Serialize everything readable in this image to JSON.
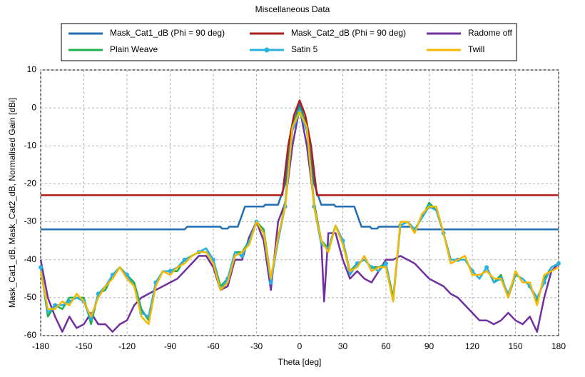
{
  "chart_data": {
    "type": "line",
    "title": "Miscellaneous Data",
    "x_label": "Theta [deg]",
    "y_label": "Mask_Cat1_dB, Mask_Cat2_dB, Normalised Gain [dBi]",
    "xlim": [
      -180,
      180
    ],
    "xticks": [
      -180,
      -150,
      -120,
      -90,
      -60,
      -30,
      0,
      30,
      60,
      90,
      120,
      150,
      180
    ],
    "ylim": [
      -60,
      10
    ],
    "yticks": [
      -60,
      -50,
      -40,
      -30,
      -20,
      -10,
      0,
      10
    ],
    "grid": true,
    "series": [
      {
        "name": "Mask_Cat1_dB (Phi = 90 deg)",
        "color": "#1f6fb2",
        "marker": false,
        "x": [
          -180,
          -80,
          -78,
          -55,
          -54,
          -50,
          -49,
          -43,
          -38,
          -25,
          -24,
          -15,
          -10,
          -5,
          0,
          5,
          10,
          15,
          24,
          25,
          38,
          43,
          49,
          50,
          54,
          55,
          78,
          80,
          180
        ],
        "values": [
          -32,
          -32,
          -31.3,
          -31.3,
          -31.8,
          -31.8,
          -31.3,
          -31.3,
          -26,
          -26,
          -25.5,
          -25.5,
          -20,
          -5,
          1,
          -5,
          -20,
          -25.5,
          -25.5,
          -26,
          -26,
          -31.3,
          -31.3,
          -31.8,
          -31.8,
          -31.3,
          -31.3,
          -32,
          -32
        ]
      },
      {
        "name": "Mask_Cat2_dB (Phi = 90 deg)",
        "color": "#b01c1c",
        "marker": false,
        "x": [
          -180,
          -12,
          -8,
          -4,
          0,
          4,
          8,
          12,
          180
        ],
        "values": [
          -23,
          -23,
          -10,
          -2,
          2,
          -2,
          -10,
          -23,
          -23
        ]
      },
      {
        "name": "Radome off",
        "color": "#7030a0",
        "marker": false,
        "x": [
          -180,
          -175,
          -170,
          -165,
          -160,
          -155,
          -150,
          -145,
          -140,
          -135,
          -130,
          -125,
          -120,
          -115,
          -110,
          -105,
          -100,
          -95,
          -90,
          -85,
          -80,
          -75,
          -70,
          -65,
          -60,
          -55,
          -50,
          -45,
          -40,
          -35,
          -30,
          -25,
          -20,
          -15,
          -10,
          -5,
          0,
          5,
          10,
          15,
          17,
          20,
          25,
          30,
          35,
          40,
          45,
          50,
          55,
          60,
          65,
          70,
          75,
          80,
          85,
          90,
          95,
          100,
          105,
          110,
          115,
          120,
          125,
          130,
          135,
          140,
          145,
          150,
          155,
          160,
          165,
          170,
          175,
          180
        ],
        "values": [
          -40,
          -50,
          -55,
          -59,
          -55,
          -58,
          -57,
          -54,
          -57,
          -57,
          -59,
          -57,
          -56,
          -52,
          -50,
          -49,
          -48,
          -47,
          -46,
          -45,
          -43,
          -41,
          -39,
          -39,
          -42,
          -48,
          -47,
          -40,
          -40,
          -34,
          -30,
          -35,
          -48,
          -30,
          -25,
          -10,
          0,
          -10,
          -25,
          -35,
          -51,
          -33,
          -33,
          -40,
          -45,
          -43,
          -45,
          -46,
          -43,
          -40,
          -40,
          -39,
          -40,
          -41,
          -43,
          -45,
          -46,
          -47,
          -49,
          -50,
          -52,
          -54,
          -56,
          -56,
          -57,
          -56,
          -54,
          -56,
          -57,
          -55,
          -59,
          -50,
          -43,
          -41
        ]
      },
      {
        "name": "Plain Weave",
        "color": "#1fae4b",
        "marker": false,
        "x": [
          -180,
          -175,
          -170,
          -165,
          -160,
          -155,
          -150,
          -145,
          -140,
          -135,
          -130,
          -125,
          -120,
          -115,
          -110,
          -105,
          -100,
          -95,
          -90,
          -85,
          -80,
          -75,
          -70,
          -65,
          -60,
          -55,
          -50,
          -45,
          -40,
          -35,
          -30,
          -25,
          -20,
          -15,
          -10,
          -5,
          0,
          5,
          10,
          15,
          20,
          25,
          30,
          35,
          40,
          45,
          50,
          55,
          60,
          65,
          70,
          75,
          80,
          85,
          90,
          95,
          100,
          105,
          110,
          115,
          120,
          125,
          130,
          135,
          140,
          145,
          150,
          155,
          160,
          165,
          170,
          175,
          180
        ],
        "values": [
          -42,
          -55,
          -52,
          -53,
          -50,
          -50,
          -50,
          -57,
          -49,
          -48,
          -44,
          -42,
          -44,
          -46,
          -53,
          -56,
          -46,
          -43,
          -43,
          -43,
          -40,
          -39,
          -38,
          -37,
          -40,
          -47,
          -45,
          -38,
          -38,
          -35,
          -30,
          -32,
          -45,
          -35,
          -25,
          -5,
          0,
          -5,
          -25,
          -35,
          -37,
          -31,
          -35,
          -43,
          -41,
          -40,
          -42,
          -42,
          -41,
          -50,
          -31,
          -30,
          -32,
          -29,
          -25,
          -27,
          -33,
          -40,
          -40,
          -40,
          -43,
          -45,
          -42,
          -46,
          -44,
          -50,
          -44,
          -45,
          -47,
          -51,
          -45,
          -42,
          -41
        ]
      },
      {
        "name": "Satin 5",
        "color": "#2bb0e0",
        "marker": true,
        "x": [
          -180,
          -175,
          -170,
          -165,
          -160,
          -155,
          -150,
          -145,
          -140,
          -135,
          -130,
          -125,
          -120,
          -115,
          -110,
          -105,
          -100,
          -95,
          -90,
          -85,
          -80,
          -75,
          -70,
          -65,
          -60,
          -55,
          -50,
          -45,
          -40,
          -35,
          -30,
          -25,
          -20,
          -15,
          -10,
          -5,
          0,
          5,
          10,
          15,
          20,
          25,
          30,
          35,
          40,
          45,
          50,
          55,
          60,
          65,
          70,
          75,
          80,
          85,
          90,
          95,
          100,
          105,
          110,
          115,
          120,
          125,
          130,
          135,
          140,
          145,
          150,
          155,
          160,
          165,
          170,
          175,
          180
        ],
        "values": [
          -42,
          -54,
          -52,
          -52,
          -51,
          -50,
          -51,
          -56,
          -49,
          -47,
          -44,
          -42,
          -44,
          -47,
          -54,
          -55,
          -46,
          -43,
          -43,
          -42,
          -40,
          -39,
          -38,
          -37,
          -40,
          -48,
          -45,
          -38,
          -39,
          -35,
          -30,
          -33,
          -46,
          -35,
          -26,
          -6,
          -1,
          -6,
          -26,
          -36,
          -37,
          -31,
          -35,
          -44,
          -41,
          -40,
          -42,
          -43,
          -41,
          -51,
          -31,
          -30,
          -32,
          -29,
          -26,
          -27,
          -33,
          -40,
          -40,
          -40,
          -43,
          -45,
          -42,
          -46,
          -45,
          -49,
          -44,
          -45,
          -47,
          -50,
          -46,
          -42,
          -41
        ]
      },
      {
        "name": "Twill",
        "color": "#f5b800",
        "marker": false,
        "x": [
          -180,
          -175,
          -170,
          -165,
          -160,
          -155,
          -150,
          -145,
          -140,
          -135,
          -130,
          -125,
          -120,
          -115,
          -110,
          -105,
          -100,
          -95,
          -90,
          -85,
          -80,
          -75,
          -70,
          -65,
          -60,
          -55,
          -50,
          -45,
          -40,
          -35,
          -30,
          -25,
          -20,
          -15,
          -10,
          -5,
          0,
          5,
          10,
          15,
          20,
          25,
          30,
          35,
          40,
          45,
          50,
          55,
          60,
          65,
          70,
          75,
          80,
          85,
          90,
          95,
          100,
          105,
          110,
          115,
          120,
          125,
          130,
          135,
          140,
          145,
          150,
          155,
          160,
          165,
          170,
          175,
          180
        ],
        "values": [
          -43,
          -53,
          -53,
          -51,
          -52,
          -49,
          -51,
          -55,
          -50,
          -47,
          -45,
          -42,
          -45,
          -47,
          -55,
          -57,
          -47,
          -43,
          -44,
          -42,
          -41,
          -39,
          -38,
          -38,
          -41,
          -48,
          -46,
          -39,
          -38,
          -36,
          -30,
          -33,
          -45,
          -34,
          -26,
          -5,
          -1,
          -5,
          -26,
          -35,
          -38,
          -31,
          -36,
          -43,
          -42,
          -39,
          -43,
          -42,
          -42,
          -51,
          -30,
          -30,
          -33,
          -28,
          -26,
          -26,
          -33,
          -41,
          -40,
          -39,
          -44,
          -44,
          -43,
          -45,
          -45,
          -50,
          -43,
          -46,
          -46,
          -52,
          -44,
          -43,
          -42
        ]
      }
    ]
  }
}
